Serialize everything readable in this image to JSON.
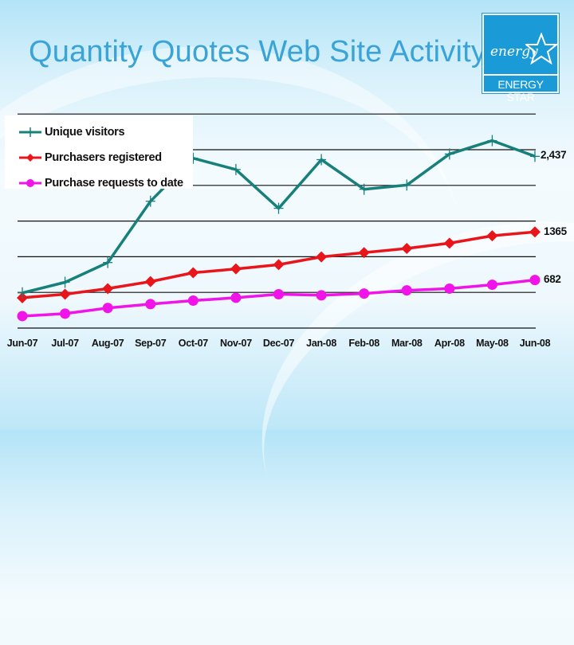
{
  "slide": {
    "title": "Quantity Quotes Web Site Activity",
    "logo": {
      "script_text": "energy",
      "band_text": "ENERGY STAR",
      "icon": "star-icon",
      "color": "#1a9ad6"
    }
  },
  "colors": {
    "unique_visitors": "#17807a",
    "purchasers_registered": "#e8151b",
    "purchase_requests": "#f014e8",
    "title": "#3aa3d8"
  },
  "legend": [
    {
      "label": "Unique visitors",
      "marker": "plus-icon"
    },
    {
      "label": "Purchasers registered",
      "marker": "diamond-icon"
    },
    {
      "label": "Purchase requests to date",
      "marker": "circle-icon"
    }
  ],
  "end_labels": {
    "unique_visitors": "2,437",
    "purchasers_registered": "1365",
    "purchase_requests": "682"
  },
  "chart_data": {
    "type": "line",
    "title": "Quantity Quotes Web Site Activity",
    "xlabel": "",
    "ylabel": "",
    "categories": [
      "Jun-07",
      "Jul-07",
      "Aug-07",
      "Sep-07",
      "Oct-07",
      "Nov-07",
      "Dec-07",
      "Jan-08",
      "Feb-08",
      "Mar-08",
      "Apr-08",
      "May-08",
      "Jun-08"
    ],
    "series": [
      {
        "name": "Unique visitors",
        "marker": "plus",
        "values": [
          500,
          650,
          930,
          1800,
          2410,
          2250,
          1700,
          2390,
          1970,
          2030,
          2470,
          2660,
          2437
        ]
      },
      {
        "name": "Purchasers registered",
        "marker": "diamond",
        "values": [
          430,
          480,
          560,
          660,
          785,
          840,
          900,
          1010,
          1070,
          1130,
          1205,
          1310,
          1365
        ]
      },
      {
        "name": "Purchase requests to date",
        "marker": "circle",
        "values": [
          170,
          205,
          285,
          340,
          390,
          430,
          480,
          465,
          490,
          535,
          560,
          615,
          682
        ]
      }
    ],
    "annotations": [
      {
        "series": "Unique visitors",
        "text": "2,437"
      },
      {
        "series": "Purchasers registered",
        "text": "1365"
      },
      {
        "series": "Purchase requests to date",
        "text": "682"
      }
    ],
    "ylim": [
      0,
      3000
    ],
    "y_tick_labels_visible": false,
    "grid": true,
    "gridline_step": 500,
    "legend_position": "upper left"
  }
}
